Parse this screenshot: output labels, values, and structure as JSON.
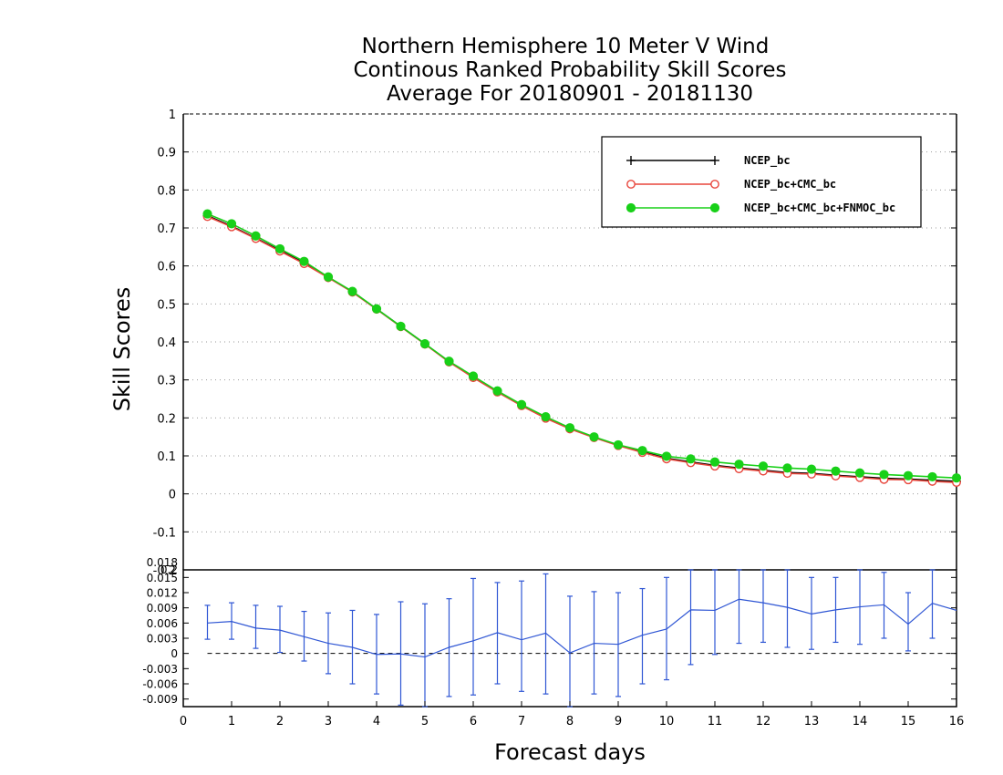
{
  "chart_data": [
    {
      "type": "line",
      "title_lines": [
        "Northern Hemisphere 10 Meter V Wind",
        "Continous Ranked Probability Skill Scores",
        "Average For 20180901 - 20181130"
      ],
      "xlabel": "Forecast days",
      "ylabel": "Skill Scores",
      "xlim": [
        0,
        16
      ],
      "ylim": [
        -0.2,
        1
      ],
      "x_ticks": [
        "0",
        "1",
        "2",
        "3",
        "4",
        "5",
        "6",
        "7",
        "8",
        "9",
        "10",
        "11",
        "12",
        "13",
        "14",
        "15",
        "16"
      ],
      "y_ticks": [
        "1",
        "0.9",
        "0.8",
        "0.7",
        "0.6",
        "0.5",
        "0.4",
        "0.3",
        "0.2",
        "0.1",
        "0",
        "-0.1",
        "-0.2"
      ],
      "y_tick_values": [
        1,
        0.9,
        0.8,
        0.7,
        0.6,
        0.5,
        0.4,
        0.3,
        0.2,
        0.1,
        0,
        -0.1,
        -0.2
      ],
      "grid": "horizontal-dotted",
      "legend_position": "top-right",
      "x": [
        0.5,
        1,
        1.5,
        2,
        2.5,
        3,
        3.5,
        4,
        4.5,
        5,
        5.5,
        6,
        6.5,
        7,
        7.5,
        8,
        8.5,
        9,
        9.5,
        10,
        10.5,
        11,
        11.5,
        12,
        12.5,
        13,
        13.5,
        14,
        14.5,
        15,
        15.5,
        16
      ],
      "series": [
        {
          "name": "NCEP_bc",
          "color": "#000000",
          "marker": "plus",
          "values": [
            0.732,
            0.705,
            0.673,
            0.641,
            0.608,
            0.57,
            0.532,
            0.487,
            0.441,
            0.395,
            0.348,
            0.308,
            0.27,
            0.234,
            0.201,
            0.172,
            0.149,
            0.128,
            0.111,
            0.094,
            0.084,
            0.075,
            0.068,
            0.062,
            0.056,
            0.054,
            0.049,
            0.045,
            0.041,
            0.039,
            0.036,
            0.033
          ]
        },
        {
          "name": "NCEP_bc+CMC_bc",
          "color": "#e8463c",
          "marker": "open-circle",
          "values": [
            0.73,
            0.703,
            0.672,
            0.639,
            0.606,
            0.569,
            0.531,
            0.486,
            0.44,
            0.394,
            0.347,
            0.306,
            0.268,
            0.232,
            0.199,
            0.171,
            0.148,
            0.127,
            0.109,
            0.092,
            0.082,
            0.073,
            0.066,
            0.06,
            0.054,
            0.052,
            0.047,
            0.043,
            0.038,
            0.037,
            0.033,
            0.03
          ]
        },
        {
          "name": "NCEP_bc+CMC_bc+FNMOC_bc",
          "color": "#18d018",
          "marker": "filled-circle",
          "values": [
            0.737,
            0.711,
            0.679,
            0.645,
            0.612,
            0.571,
            0.533,
            0.487,
            0.441,
            0.395,
            0.349,
            0.31,
            0.271,
            0.235,
            0.203,
            0.174,
            0.15,
            0.129,
            0.114,
            0.099,
            0.092,
            0.084,
            0.078,
            0.073,
            0.068,
            0.065,
            0.06,
            0.055,
            0.051,
            0.048,
            0.045,
            0.042
          ]
        }
      ]
    },
    {
      "type": "line",
      "xlabel": "Forecast days",
      "xlim": [
        0,
        16
      ],
      "ylim": [
        -0.0105,
        0.0165
      ],
      "x_ticks": [
        "0",
        "1",
        "2",
        "3",
        "4",
        "5",
        "6",
        "7",
        "8",
        "9",
        "10",
        "11",
        "12",
        "13",
        "14",
        "15",
        "16"
      ],
      "y_ticks": [
        "0.018",
        "0.015",
        "0.012",
        "0.009",
        "0.006",
        "0.003",
        "0",
        "-0.003",
        "-0.006",
        "-0.009"
      ],
      "y_tick_values": [
        0.018,
        0.015,
        0.012,
        0.009,
        0.006,
        0.003,
        0,
        -0.003,
        -0.006,
        -0.009
      ],
      "top_tick_label": "0.2",
      "x": [
        0.5,
        1,
        1.5,
        2,
        2.5,
        3,
        3.5,
        4,
        4.5,
        5,
        5.5,
        6,
        6.5,
        7,
        7.5,
        8,
        8.5,
        9,
        9.5,
        10,
        10.5,
        11,
        11.5,
        12,
        12.5,
        13,
        13.5,
        14,
        14.5,
        15,
        15.5,
        16
      ],
      "series": [
        {
          "name": "",
          "color": "#2f56d4",
          "values": [
            0.006,
            0.0063,
            0.005,
            0.0046,
            0.0033,
            0.002,
            0.0012,
            -0.0002,
            -0.0001,
            -0.0007,
            0.0012,
            0.0025,
            0.0041,
            0.0027,
            0.004,
            0.0001,
            0.002,
            0.0018,
            0.0036,
            0.0048,
            0.0086,
            0.0085,
            0.0107,
            0.01,
            0.0091,
            0.0078,
            0.0086,
            0.0092,
            0.0096,
            0.0058,
            0.0099,
            0.0085
          ],
          "error_low": [
            0.0028,
            0.0028,
            0.001,
            0.0002,
            -0.0015,
            -0.004,
            -0.006,
            -0.008,
            -0.0102,
            -0.0108,
            -0.0085,
            -0.0082,
            -0.006,
            -0.0075,
            -0.008,
            -0.0112,
            -0.008,
            -0.0085,
            -0.006,
            -0.0052,
            -0.0022,
            -0.0002,
            0.002,
            0.0022,
            0.0012,
            0.0008,
            0.0022,
            0.0018,
            0.003,
            0.0005,
            0.003,
            0.0085
          ],
          "error_high": [
            0.0095,
            0.01,
            0.0095,
            0.0093,
            0.0083,
            0.008,
            0.0085,
            0.0077,
            0.0102,
            0.0098,
            0.0108,
            0.0148,
            0.014,
            0.0143,
            0.0157,
            0.0113,
            0.0122,
            0.012,
            0.0128,
            0.015,
            0.019,
            0.0175,
            0.02,
            0.0178,
            0.0165,
            0.015,
            0.015,
            0.0168,
            0.016,
            0.012,
            0.0165,
            0.0085
          ]
        }
      ],
      "reference_line": 0
    }
  ]
}
